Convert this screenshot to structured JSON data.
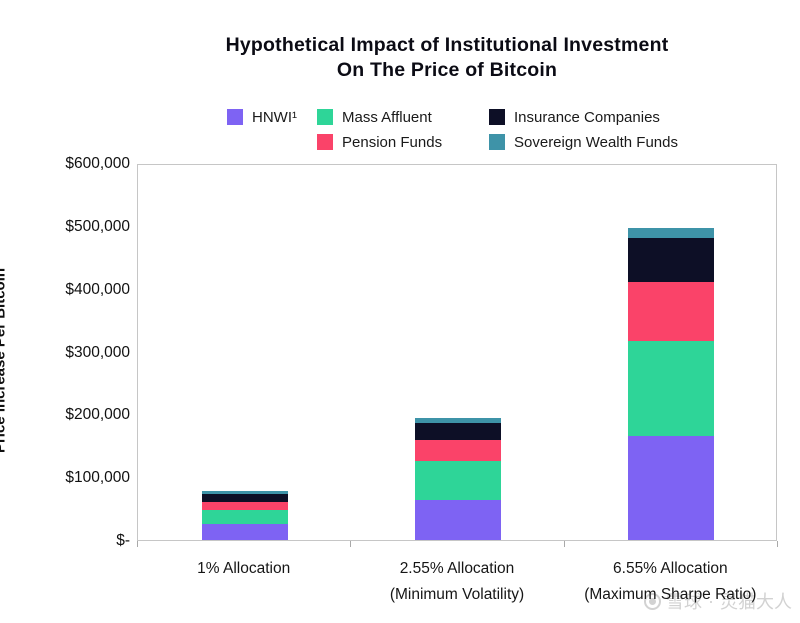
{
  "title": {
    "line1": "Hypothetical Impact of Institutional Investment",
    "line2": "On The Price of Bitcoin"
  },
  "y_axis": {
    "label": "Price Increase Per Bitcoin",
    "ticks": [
      "$600,000",
      "$500,000",
      "$400,000",
      "$300,000",
      "$200,000",
      "$100,000",
      "$-"
    ]
  },
  "watermark": {
    "site": "雪球",
    "user": "灵猫大人"
  },
  "colors": {
    "hnwi": "#7E63F3",
    "mass_affluent": "#2ED598",
    "pension_funds": "#FA4369",
    "insurance_companies": "#0D0F26",
    "sovereign_wealth_funds": "#3E93A8",
    "plot_border": "#c6c6c6",
    "watermark": "#d2d2d2"
  },
  "chart_data": {
    "type": "bar",
    "stacked": true,
    "title": "Hypothetical Impact of Institutional Investment On The Price of Bitcoin",
    "ylabel": "Price Increase Per Bitcoin",
    "xlabel": "",
    "ylim": [
      0,
      600000
    ],
    "y_tick_step": 100000,
    "grid": false,
    "legend_position": "top",
    "categories": [
      [
        "1% Allocation"
      ],
      [
        "2.55% Allocation",
        "(Minimum Volatility)"
      ],
      [
        "6.55% Allocation",
        "(Maximum Sharpe Ratio)"
      ]
    ],
    "series": [
      {
        "name": "HNWI¹",
        "color": "#7E63F3",
        "values": [
          25000,
          64000,
          166000
        ]
      },
      {
        "name": "Mass Affluent",
        "color": "#2ED598",
        "values": [
          23000,
          61000,
          151000
        ]
      },
      {
        "name": "Pension Funds",
        "color": "#FA4369",
        "values": [
          13000,
          34000,
          93000
        ]
      },
      {
        "name": "Insurance Companies",
        "color": "#0D0F26",
        "values": [
          13000,
          28000,
          70000
        ]
      },
      {
        "name": "Sovereign Wealth Funds",
        "color": "#3E93A8",
        "values": [
          4000,
          8000,
          17000
        ]
      }
    ],
    "stack_totals_approx": [
      78000,
      195000,
      497000
    ],
    "legend_columns": [
      [
        0
      ],
      [
        1,
        2
      ],
      [
        3,
        4
      ]
    ]
  }
}
